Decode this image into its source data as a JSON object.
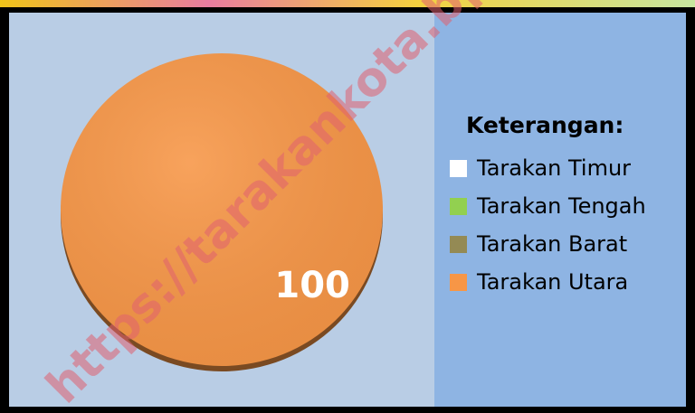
{
  "chart_data": {
    "type": "pie",
    "legend_title": "Keterangan:",
    "categories": [
      "Tarakan Timur",
      "Tarakan Tengah",
      "Tarakan Barat",
      "Tarakan Utara"
    ],
    "values": [
      0,
      0,
      0,
      100
    ],
    "colors": [
      "#ffffff",
      "#92d050",
      "#948a54",
      "#f79646"
    ],
    "labeled": [
      false,
      false,
      false,
      true
    ],
    "legend": "right",
    "watermark": "https://tarakankota.bps.go.id"
  }
}
